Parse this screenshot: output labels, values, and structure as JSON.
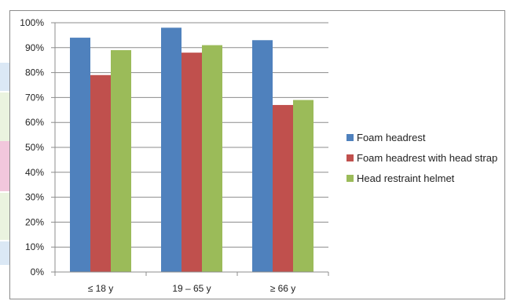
{
  "chart_data": {
    "type": "bar",
    "categories": [
      "≤ 18 y",
      "19 – 65 y",
      "≥ 66 y"
    ],
    "series": [
      {
        "name": "Foam headrest",
        "color": "#4f81bd",
        "values": [
          94,
          98,
          93
        ]
      },
      {
        "name": "Foam headrest with head strap",
        "color": "#c0504d",
        "values": [
          79,
          88,
          67
        ]
      },
      {
        "name": "Head restraint helmet",
        "color": "#9bbb59",
        "values": [
          89,
          91,
          69
        ]
      }
    ],
    "ylim": [
      0,
      100
    ],
    "yticks": [
      0,
      10,
      20,
      30,
      40,
      50,
      60,
      70,
      80,
      90,
      100
    ],
    "ytick_labels": [
      "0%",
      "10%",
      "20%",
      "30%",
      "40%",
      "50%",
      "60%",
      "70%",
      "80%",
      "90%",
      "100%"
    ],
    "grid": true,
    "legend_position": "right",
    "title": "",
    "xlabel": "",
    "ylabel": ""
  }
}
